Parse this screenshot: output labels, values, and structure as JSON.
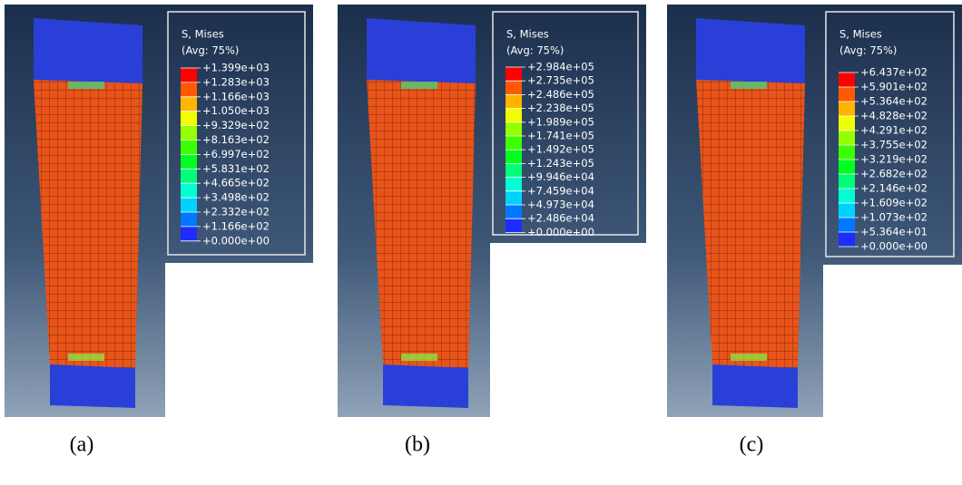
{
  "panels": [
    {
      "legend_title": "S, Mises",
      "legend_subtitle": "(Avg: 75%)",
      "levels": [
        "+1.399e+03",
        "+1.283e+03",
        "+1.166e+03",
        "+1.050e+03",
        "+9.329e+02",
        "+8.163e+02",
        "+6.997e+02",
        "+5.831e+02",
        "+4.665e+02",
        "+3.498e+02",
        "+2.332e+02",
        "+1.166e+02",
        "+0.000e+00"
      ],
      "caption": "(a)"
    },
    {
      "legend_title": "S, Mises",
      "legend_subtitle": "(Avg: 75%)",
      "levels": [
        "+2.984e+05",
        "+2.735e+05",
        "+2.486e+05",
        "+2.238e+05",
        "+1.989e+05",
        "+1.741e+05",
        "+1.492e+05",
        "+1.243e+05",
        "+9.946e+04",
        "+7.459e+04",
        "+4.973e+04",
        "+2.486e+04",
        "+0.000e+00"
      ],
      "caption": "(b)"
    },
    {
      "legend_title": "S, Mises",
      "legend_subtitle": "(Avg: 75%)",
      "levels": [
        "+6.437e+02",
        "+5.901e+02",
        "+5.364e+02",
        "+4.828e+02",
        "+4.291e+02",
        "+3.755e+02",
        "+3.219e+02",
        "+2.682e+02",
        "+2.146e+02",
        "+1.609e+02",
        "+1.073e+02",
        "+5.364e+01",
        "+0.000e+00"
      ],
      "caption": "(c)"
    }
  ]
}
